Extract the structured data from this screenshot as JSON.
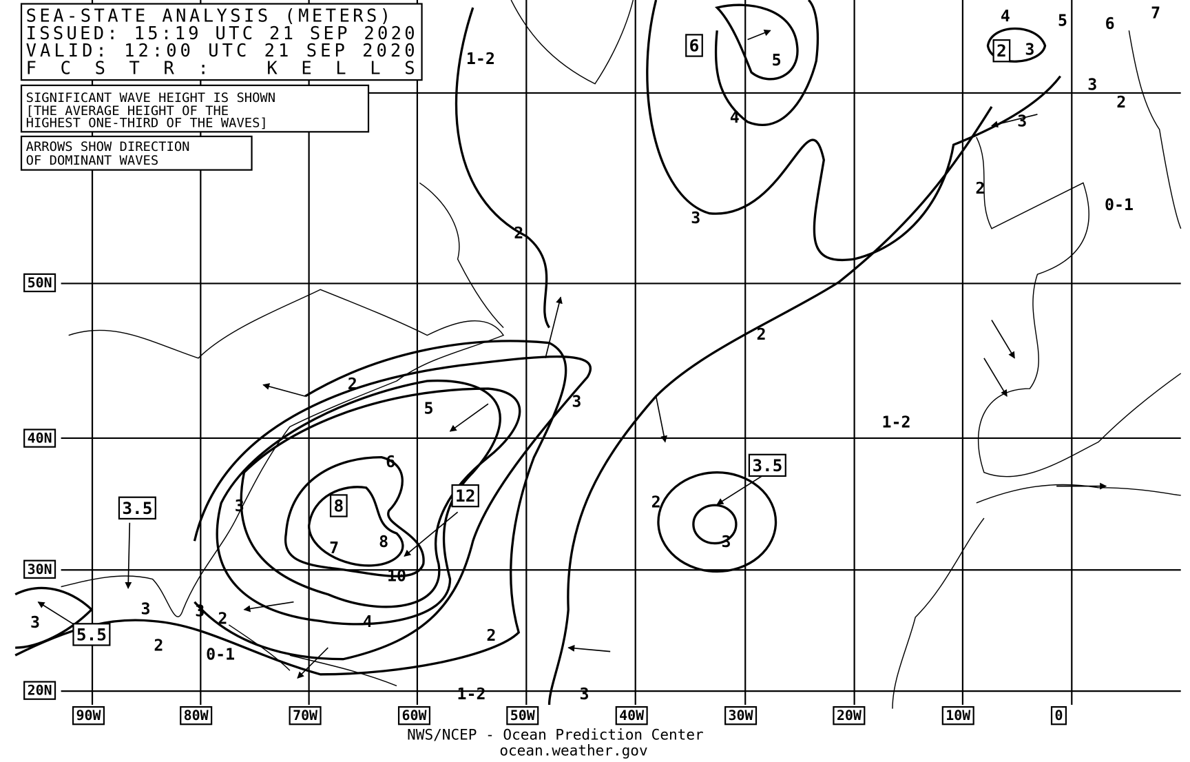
{
  "header": {
    "lines": [
      "SEA-STATE ANALYSIS (METERS)",
      "ISSUED:  15:19 UTC 21 SEP 2020",
      "VALID:   12:00 UTC 21 SEP 2020",
      "FCSTR:   KELLS"
    ]
  },
  "notes": [
    [
      "SIGNIFICANT WAVE HEIGHT IS SHOWN",
      "[THE AVERAGE HEIGHT OF THE",
      "HIGHEST ONE-THIRD OF THE WAVES]"
    ],
    [
      "ARROWS SHOW DIRECTION",
      "OF DOMINANT WAVES"
    ]
  ],
  "latitude_labels": [
    "50N",
    "40N",
    "30N",
    "20N"
  ],
  "longitude_labels": [
    "90W",
    "80W",
    "70W",
    "60W",
    "50W",
    "40W",
    "30W",
    "20W",
    "10W",
    "0"
  ],
  "contour_labels": [
    "1-2",
    "5",
    "4",
    "3",
    "4",
    "5",
    "6",
    "7",
    "3",
    "3",
    "2",
    "3",
    "2",
    "0-1",
    "2",
    "2",
    "3",
    "1-2",
    "2",
    "5",
    "6",
    "7",
    "8",
    "10",
    "4",
    "3",
    "2",
    "3",
    "2",
    "3",
    "3",
    "2",
    "2",
    "0-1",
    "3",
    "1-2",
    "3"
  ],
  "boxed_labels": [
    "6",
    "2",
    "3.5",
    "12",
    "8",
    "3.5",
    "5.5"
  ],
  "footer": {
    "agency": "NWS/NCEP - Ocean Prediction Center",
    "url": "ocean.weather.gov"
  }
}
